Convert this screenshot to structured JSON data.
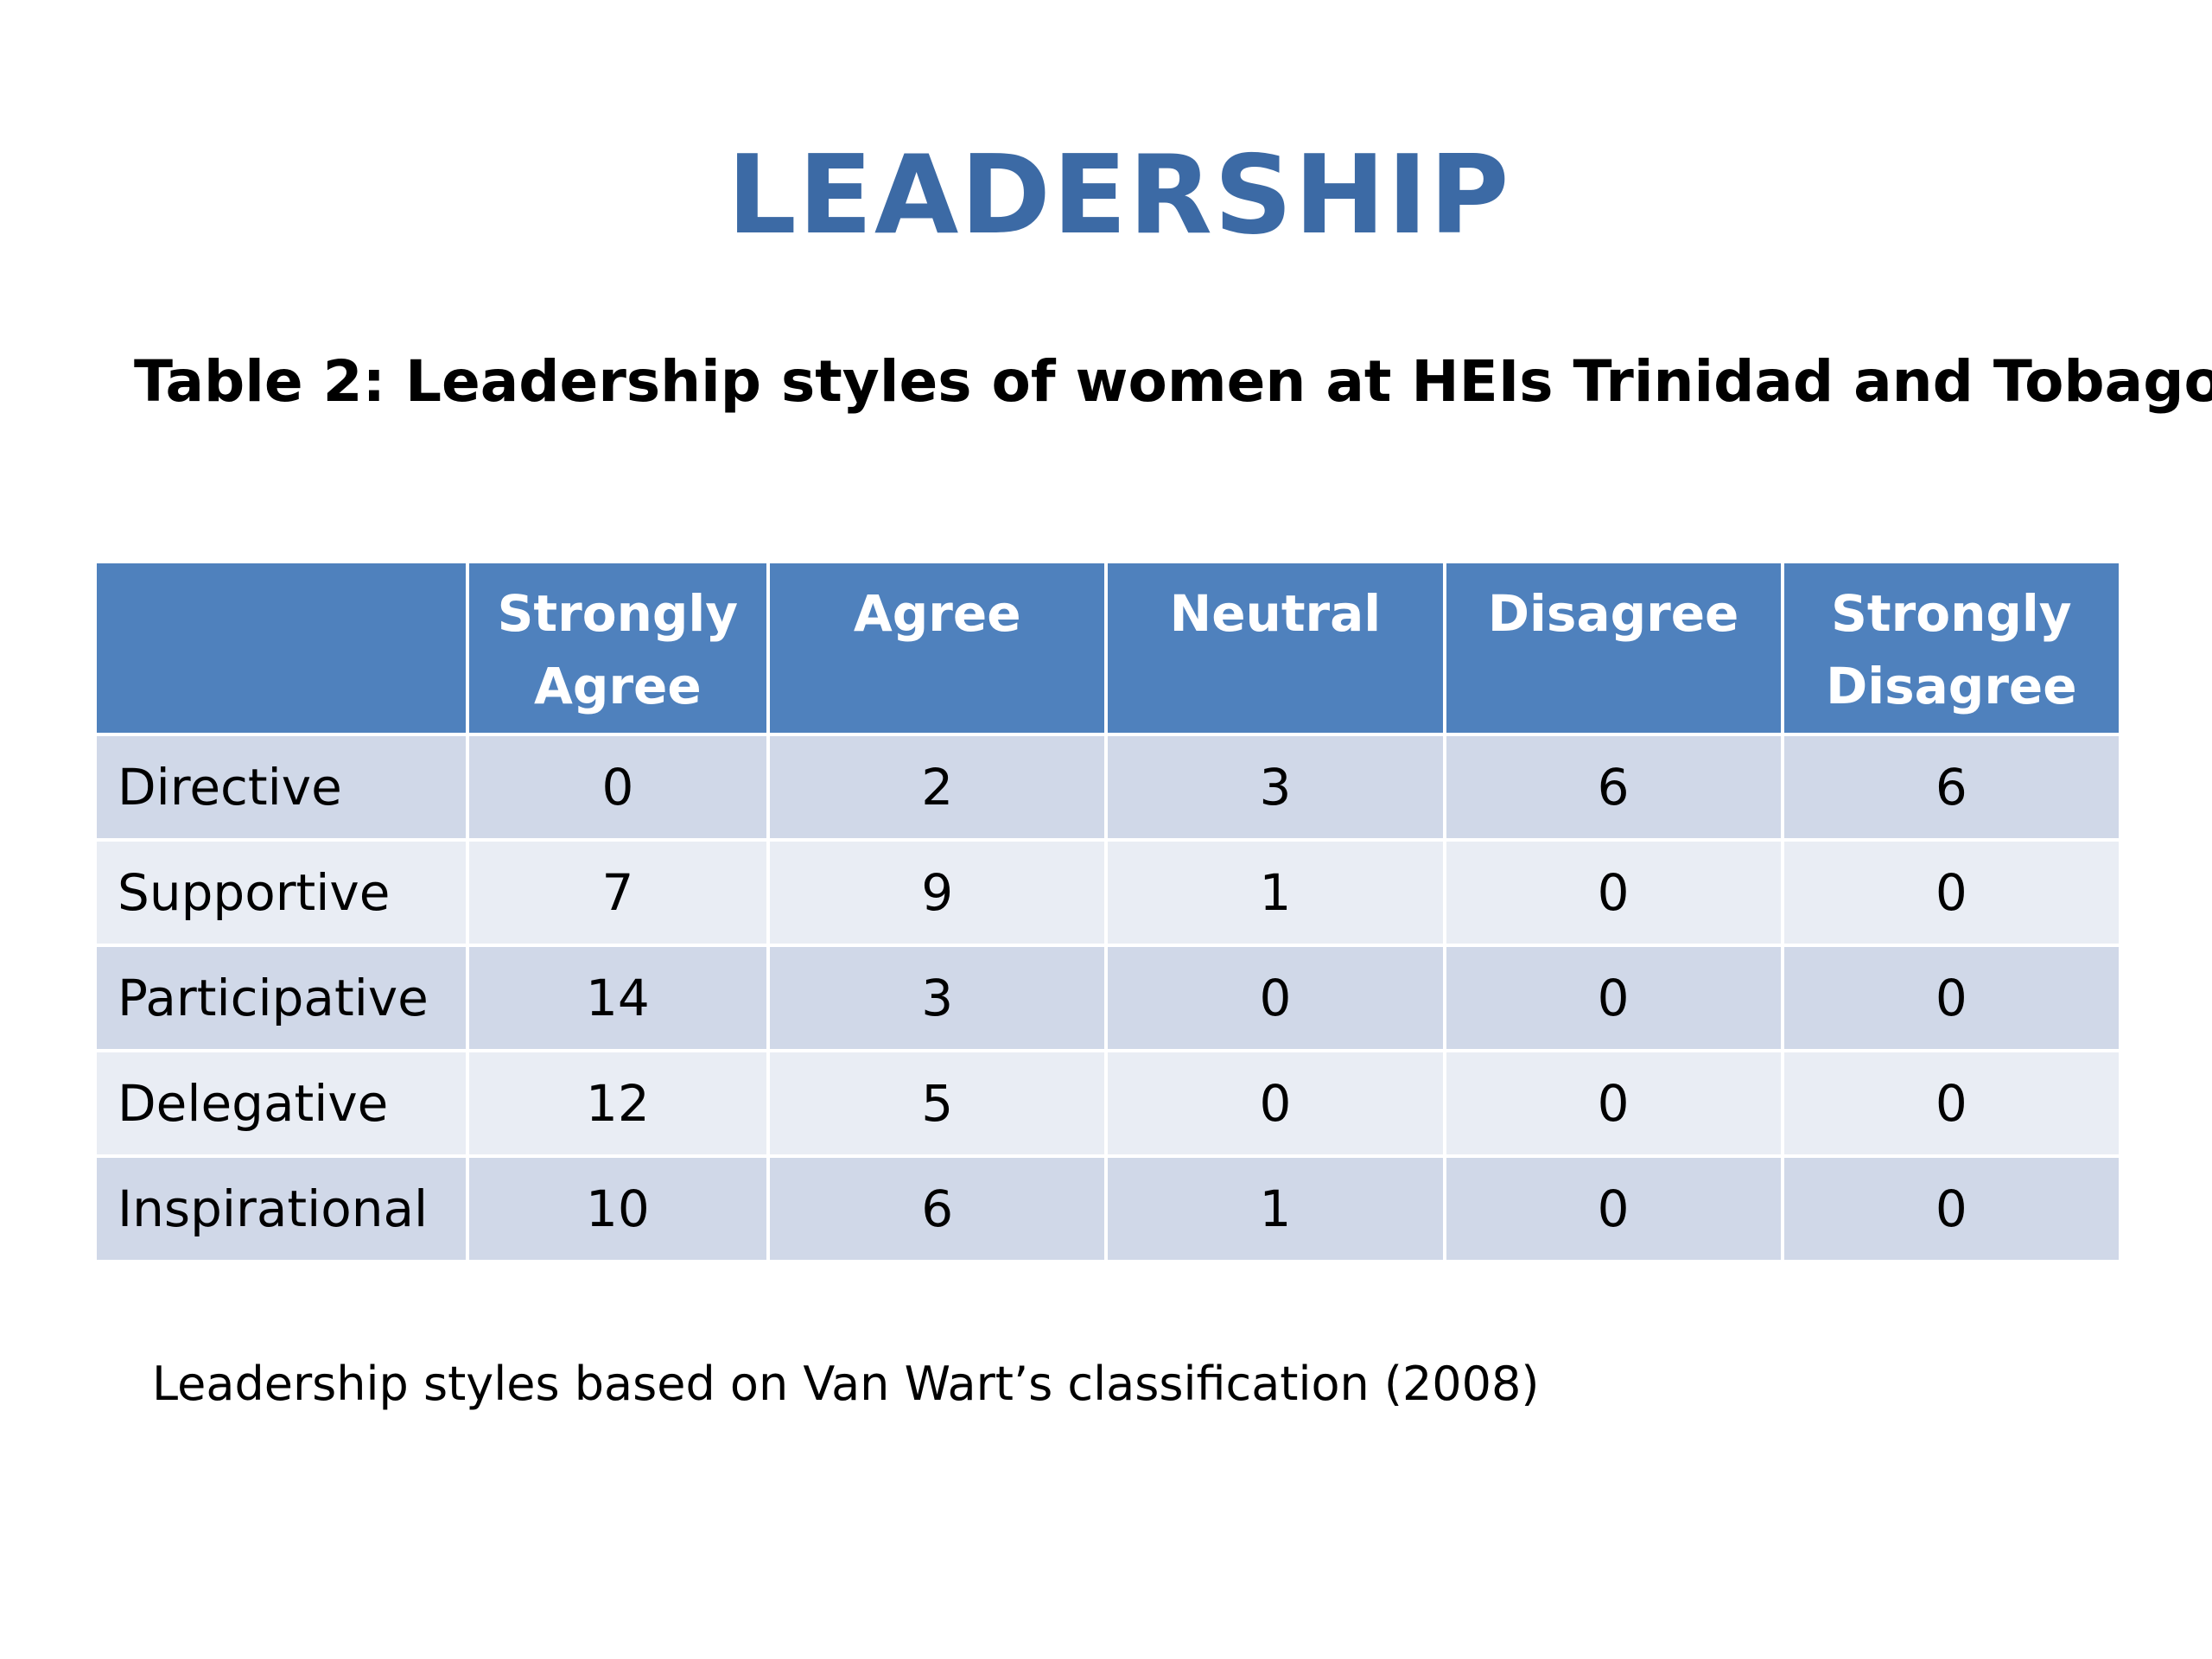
{
  "title": "LEADERSHIP",
  "caption": "Table 2: Leadership styles of women at HEIs Trinidad and Tobago",
  "table": {
    "headers": [
      "",
      "Strongly Agree",
      "Agree",
      "Neutral",
      "Disagree",
      "Strongly Disagree"
    ],
    "rows": [
      {
        "label": "Directive",
        "values": [
          "0",
          "2",
          "3",
          "6",
          "6"
        ]
      },
      {
        "label": "Supportive",
        "values": [
          "7",
          "9",
          "1",
          "0",
          "0"
        ]
      },
      {
        "label": "Participative",
        "values": [
          "14",
          "3",
          "0",
          "0",
          "0"
        ]
      },
      {
        "label": "Delegative",
        "values": [
          "12",
          "5",
          "0",
          "0",
          "0"
        ]
      },
      {
        "label": "Inspirational",
        "values": [
          "10",
          "6",
          "1",
          "0",
          "0"
        ]
      }
    ]
  },
  "footnote": "Leadership styles based on Van Wart’s classification (2008)",
  "colors": {
    "title": "#3c6aa5",
    "header_bg": "#4f81bd",
    "row_odd_bg": "#d0d8e8",
    "row_even_bg": "#e9edf4"
  }
}
